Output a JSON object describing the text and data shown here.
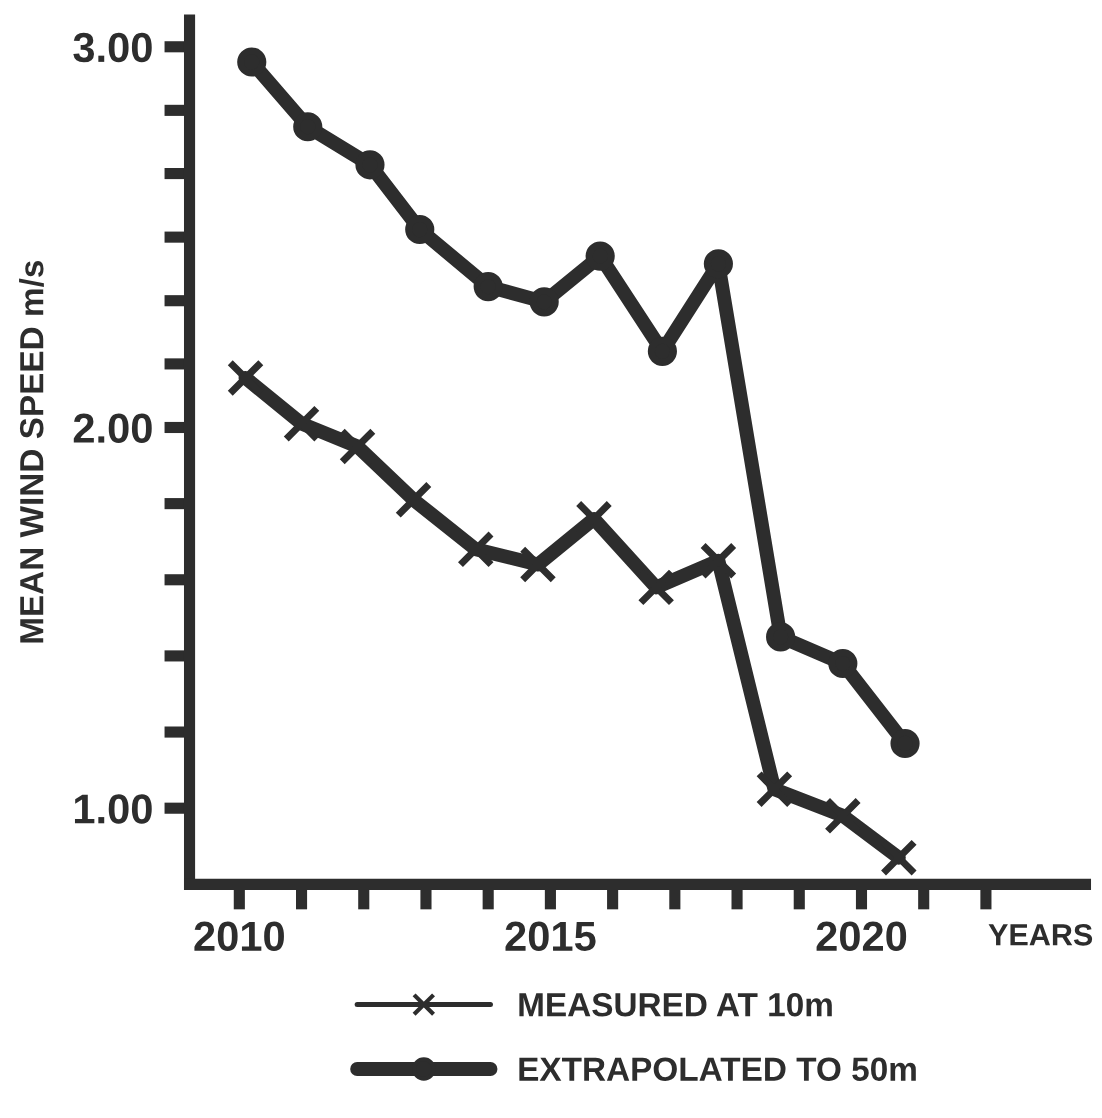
{
  "chart_data": {
    "type": "line",
    "ylabel": "MEAN WIND SPEED m/s",
    "xlabel": "YEARS",
    "xlim": [
      2009.2,
      2023.6
    ],
    "ylim": [
      0.8,
      3.07
    ],
    "xticks": [
      2010,
      {
        "value": 2011,
        "label": null
      },
      {
        "value": 2012,
        "label": null
      },
      {
        "value": 2013,
        "label": null
      },
      {
        "value": 2014,
        "label": null
      },
      2015,
      {
        "value": 2016,
        "label": null
      },
      {
        "value": 2017,
        "label": null
      },
      {
        "value": 2018,
        "label": null
      },
      {
        "value": 2019,
        "label": null
      },
      2020,
      {
        "value": 2021,
        "label": null
      },
      {
        "value": 2022,
        "label": null
      }
    ],
    "yticks": [
      {
        "value": 1,
        "label": "1.00"
      },
      {
        "value": 1.2,
        "label": null
      },
      {
        "value": 1.4,
        "label": null
      },
      {
        "value": 1.6,
        "label": null
      },
      {
        "value": 1.8,
        "label": null
      },
      {
        "value": 2,
        "label": "2.00"
      },
      {
        "value": 2.167,
        "label": null
      },
      {
        "value": 2.333,
        "label": null
      },
      {
        "value": 2.5,
        "label": null
      },
      {
        "value": 2.667,
        "label": null
      },
      {
        "value": 2.833,
        "label": null
      },
      {
        "value": 3,
        "label": "3.00"
      }
    ],
    "grid": false,
    "legend": "bottom",
    "line_style": "solid",
    "series": [
      {
        "name": "MEASURED AT 10m",
        "color": "#2d2d2d",
        "marker": "cross",
        "x": [
          2010.1,
          2011.0,
          2011.9,
          2012.8,
          2013.8,
          2014.8,
          2015.7,
          2016.7,
          2017.7,
          2018.6,
          2019.7,
          2020.6
        ],
        "values": [
          2.13,
          2.01,
          1.95,
          1.81,
          1.68,
          1.64,
          1.76,
          1.58,
          1.65,
          1.05,
          0.98,
          0.87
        ]
      },
      {
        "name": "EXTRAPOLATED TO 50m",
        "color": "#2d2d2d",
        "marker": "circle",
        "x": [
          2010.2,
          2011.1,
          2012.1,
          2012.9,
          2014.0,
          2014.9,
          2015.8,
          2016.8,
          2017.7,
          2018.7,
          2019.7,
          2020.7
        ],
        "values": [
          2.96,
          2.79,
          2.69,
          2.52,
          2.37,
          2.33,
          2.45,
          2.2,
          2.43,
          1.45,
          1.38,
          1.17
        ]
      }
    ]
  }
}
